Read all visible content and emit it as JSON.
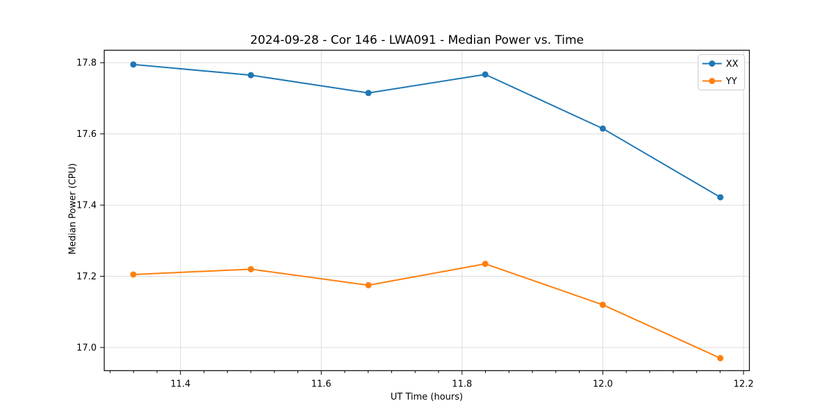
{
  "chart_data": {
    "type": "line",
    "title": "2024-09-28 - Cor 146 - LWA091 - Median Power vs. Time",
    "xlabel": "UT Time (hours)",
    "ylabel": "Median Power (CPU)",
    "x": [
      11.333,
      11.5,
      11.667,
      11.833,
      12.0,
      12.167
    ],
    "series": [
      {
        "name": "XX",
        "color": "#1f77b4",
        "values": [
          17.795,
          17.765,
          17.715,
          17.767,
          17.615,
          17.422
        ]
      },
      {
        "name": "YY",
        "color": "#ff7f0e",
        "values": [
          17.205,
          17.22,
          17.175,
          17.235,
          17.12,
          16.97
        ]
      }
    ],
    "xlim": [
      11.2917,
      12.2083
    ],
    "ylim": [
      16.935,
      17.835
    ],
    "xticks": [
      11.4,
      11.6,
      11.8,
      12.0,
      12.2
    ],
    "yticks": [
      17.0,
      17.2,
      17.4,
      17.6,
      17.8
    ],
    "x_minor_step": 0.0333333,
    "tick_decimals": 1,
    "grid": true,
    "grid_color": "#dcdcdc",
    "spine_color": "#000000",
    "background": "#ffffff",
    "marker": "circle",
    "legend": {
      "position": "upper right",
      "entries": [
        "XX",
        "YY"
      ],
      "border_color": "#cccccc",
      "fill_color": "#ffffff"
    }
  }
}
